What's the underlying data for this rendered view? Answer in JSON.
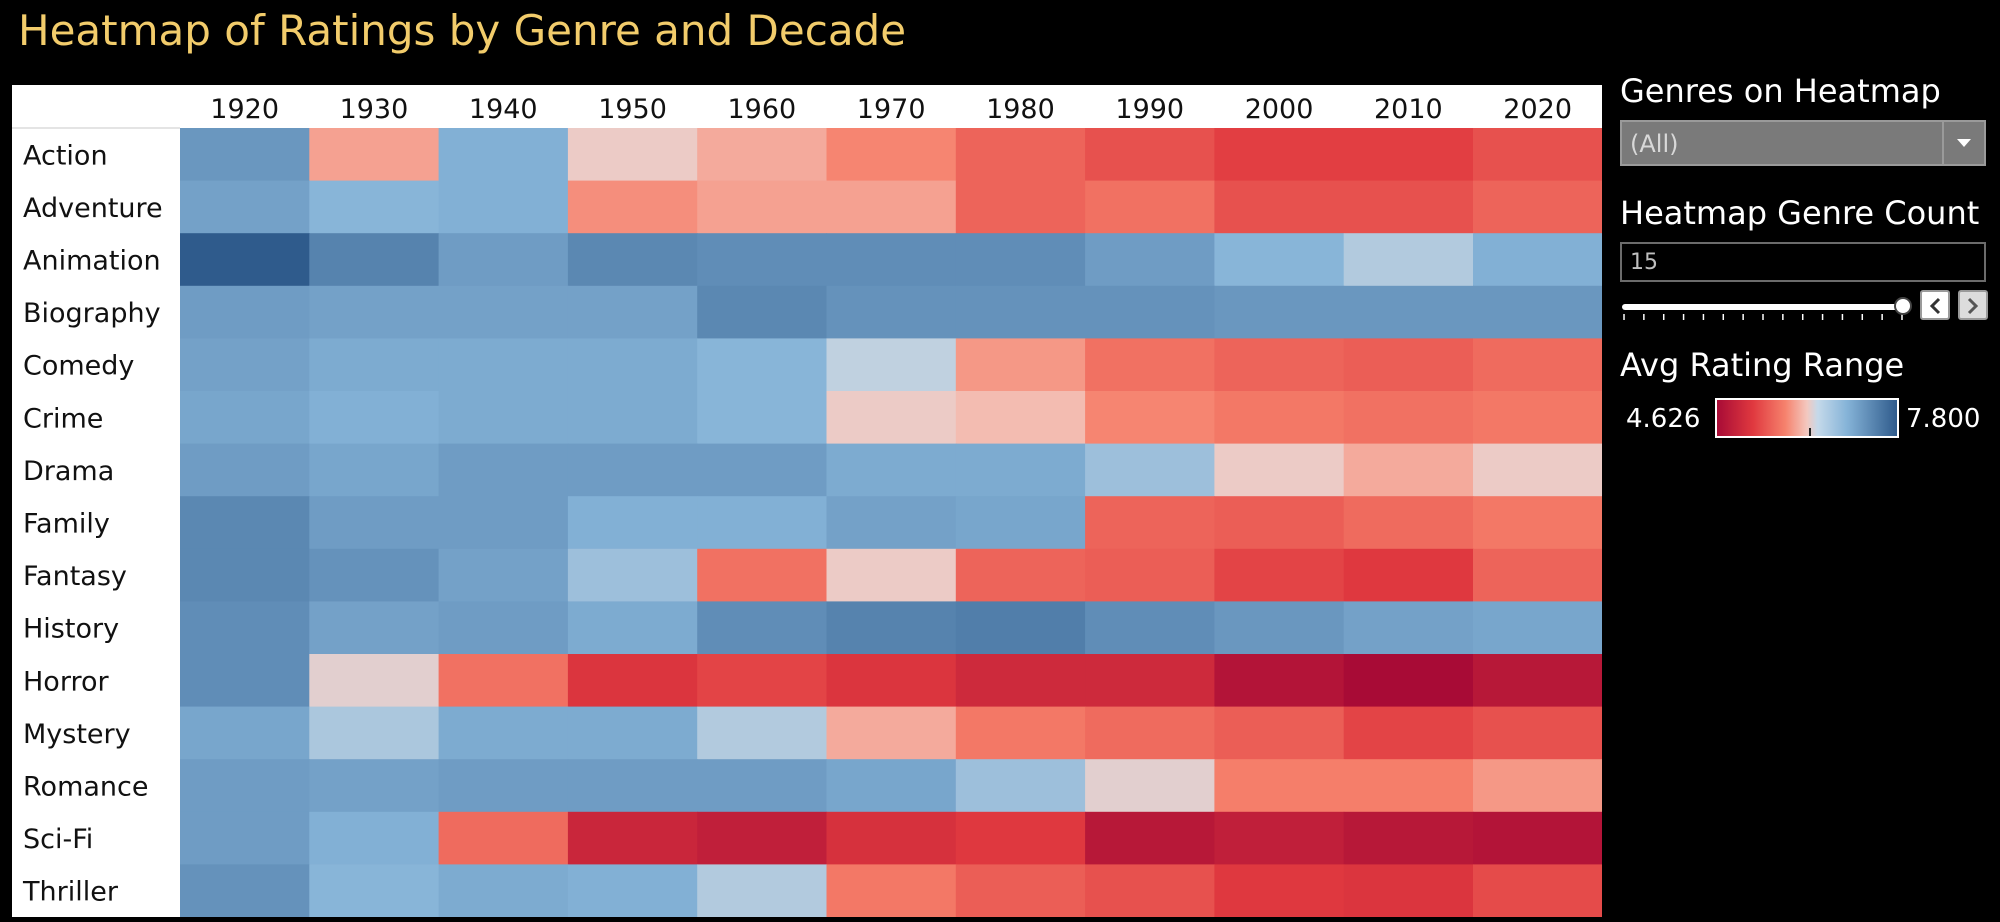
{
  "title": "Heatmap of Ratings by Genre and Decade",
  "controls": {
    "genres_title": "Genres on Heatmap",
    "genres_value": "(All)",
    "count_title": "Heatmap Genre Count",
    "count_value": "15",
    "range_title": "Avg Rating Range",
    "range_min": "4.626",
    "range_max": "7.800"
  },
  "colors": {
    "low": "#a80b36",
    "mid_low": "#f6826d",
    "neutral": "#e5d8d6",
    "mid_high": "#86b4d8",
    "high": "#2f5b8c",
    "title": "#f2cc6b"
  },
  "chart_data": {
    "type": "heatmap",
    "title": "Heatmap of Ratings by Genre and Decade",
    "x": [
      "1920",
      "1930",
      "1940",
      "1950",
      "1960",
      "1970",
      "1980",
      "1990",
      "2000",
      "2010",
      "2020"
    ],
    "y": [
      "Action",
      "Adventure",
      "Animation",
      "Biography",
      "Comedy",
      "Crime",
      "Drama",
      "Family",
      "Fantasy",
      "History",
      "Horror",
      "Mystery",
      "Romance",
      "Sci-Fi",
      "Thriller"
    ],
    "value_range": [
      4.626,
      7.8
    ],
    "values": [
      [
        7.2,
        6.0,
        6.95,
        6.25,
        6.05,
        5.85,
        5.6,
        5.45,
        5.3,
        5.3,
        5.45
      ],
      [
        7.1,
        6.9,
        6.95,
        5.9,
        6.0,
        6.0,
        5.6,
        5.7,
        5.45,
        5.45,
        5.6
      ],
      [
        7.8,
        7.4,
        7.15,
        7.35,
        7.3,
        7.3,
        7.3,
        7.15,
        6.9,
        6.6,
        6.95
      ],
      [
        7.15,
        7.1,
        7.1,
        7.1,
        7.35,
        7.25,
        7.25,
        7.25,
        7.2,
        7.2,
        7.2
      ],
      [
        7.1,
        7.0,
        7.0,
        7.0,
        6.9,
        6.5,
        5.95,
        5.7,
        5.6,
        5.55,
        5.65
      ],
      [
        7.05,
        6.95,
        7.0,
        7.0,
        6.9,
        6.25,
        6.15,
        5.85,
        5.75,
        5.7,
        5.75
      ],
      [
        7.15,
        7.05,
        7.15,
        7.15,
        7.15,
        7.0,
        7.0,
        6.75,
        6.25,
        6.05,
        6.25
      ],
      [
        7.35,
        7.15,
        7.15,
        6.95,
        6.95,
        7.1,
        7.05,
        5.6,
        5.55,
        5.65,
        5.75
      ],
      [
        7.35,
        7.25,
        7.1,
        6.75,
        5.7,
        6.25,
        5.6,
        5.55,
        5.35,
        5.25,
        5.6
      ],
      [
        7.3,
        7.1,
        7.15,
        7.0,
        7.3,
        7.4,
        7.45,
        7.3,
        7.2,
        7.1,
        7.05
      ],
      [
        7.3,
        6.3,
        5.7,
        5.2,
        5.35,
        5.2,
        5.05,
        5.05,
        4.75,
        4.626,
        4.8
      ],
      [
        7.05,
        6.65,
        7.0,
        7.0,
        6.6,
        6.05,
        5.75,
        5.65,
        5.55,
        5.35,
        5.45
      ],
      [
        7.15,
        7.1,
        7.15,
        7.15,
        7.15,
        7.05,
        6.75,
        6.3,
        5.8,
        5.8,
        5.95
      ],
      [
        7.15,
        6.95,
        5.65,
        5.0,
        4.9,
        5.15,
        5.25,
        4.8,
        4.9,
        4.8,
        4.75
      ],
      [
        7.25,
        6.9,
        7.0,
        6.95,
        6.6,
        5.75,
        5.55,
        5.45,
        5.25,
        5.2,
        5.4
      ]
    ]
  }
}
